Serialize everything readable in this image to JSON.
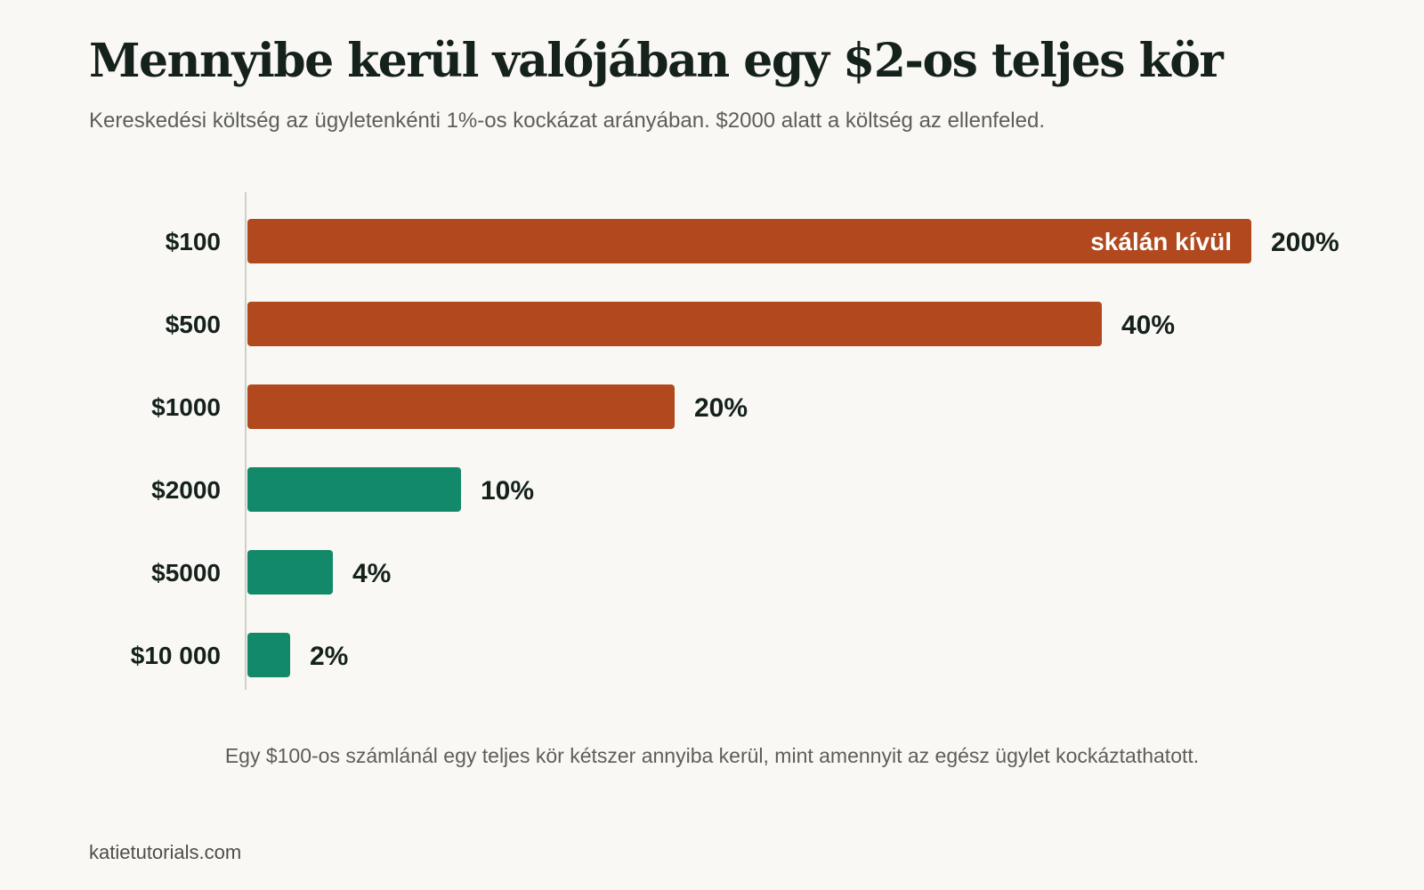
{
  "header": {
    "title": "Mennyibe kerül valójában egy $2-os teljes kör",
    "subtitle": "Kereskedési költség az ügyletenkénti 1%-os kockázat arányában. $2000 alatt a költség az ellenfeled."
  },
  "chart_data": {
    "type": "bar",
    "orientation": "horizontal",
    "categories": [
      "$100",
      "$500",
      "$1000",
      "$2000",
      "$5000",
      "$10 000"
    ],
    "values": [
      200,
      40,
      20,
      10,
      4,
      2
    ],
    "value_labels": [
      "200%",
      "40%",
      "20%",
      "10%",
      "4%",
      "2%"
    ],
    "title": "",
    "xlabel": "",
    "ylabel": "",
    "xlim": [
      0,
      48
    ],
    "grid": false,
    "off_scale_label": "skálán kívül",
    "colors": {
      "above_threshold": "#b1481e",
      "below_threshold": "#128a69"
    },
    "threshold": 10
  },
  "footer": {
    "caption": "Egy $100-os számlánál egy teljes kör kétszer annyiba kerül, mint amennyit az egész ügylet kockáztathatott.",
    "source": "katietutorials.com"
  }
}
